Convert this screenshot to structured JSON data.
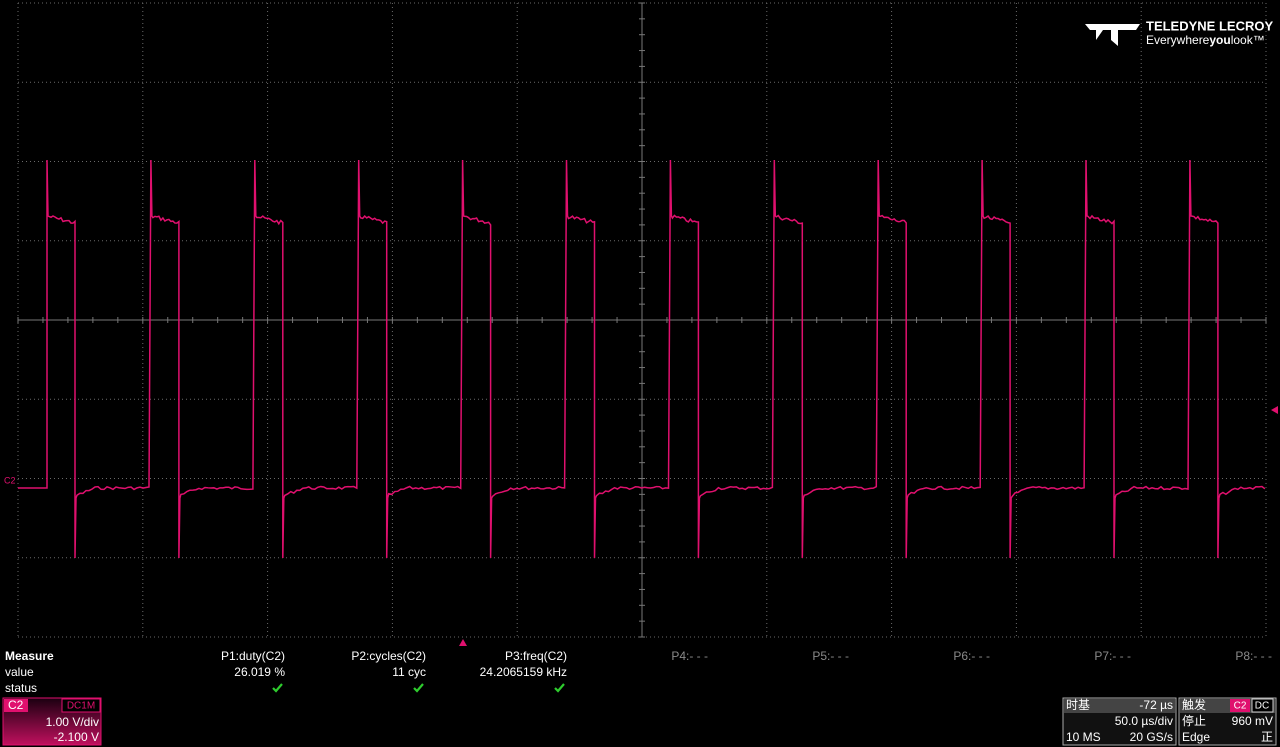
{
  "logo": {
    "brand": "TELEDYNE LECROY",
    "tagline_start": "Everywhere",
    "tagline_bold": "you",
    "tagline_end": "look™"
  },
  "trace_label": "C2",
  "measure": {
    "title": "Measure",
    "row_labels": [
      "value",
      "status"
    ],
    "columns": [
      {
        "name": "P1:duty(C2)",
        "value": "26.019 %"
      },
      {
        "name": "P2:cycles(C2)",
        "value": "11 cyc"
      },
      {
        "name": "P3:freq(C2)",
        "value": "24.2065159 kHz"
      },
      {
        "name": "P4:- - -"
      },
      {
        "name": "P5:- - -"
      },
      {
        "name": "P6:- - -"
      },
      {
        "name": "P7:- - -"
      },
      {
        "name": "P8:- - -"
      }
    ]
  },
  "channel": {
    "name": "C2",
    "coupling": "DC1M",
    "scale": "1.00 V/div",
    "offset": "-2.100 V"
  },
  "timebase": {
    "label": "时基",
    "delay": "-72 µs",
    "scale": "50.0 µs/div",
    "samples": "10 MS",
    "rate": "20 GS/s"
  },
  "trigger": {
    "label": "触发",
    "source": "C2",
    "coupling": "DC",
    "state": "停止",
    "level": "960 mV",
    "mode": "Edge",
    "slope": "正"
  }
}
